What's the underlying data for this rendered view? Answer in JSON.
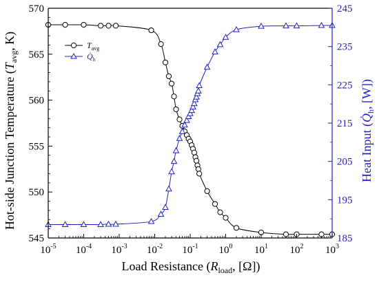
{
  "chart_data": {
    "type": "line",
    "x_scale": "log",
    "xlim_exp": [
      -5,
      3
    ],
    "x_ticks": [
      {
        "base": "10",
        "exp": "-5"
      },
      {
        "base": "10",
        "exp": "-4"
      },
      {
        "base": "10",
        "exp": "-3"
      },
      {
        "base": "10",
        "exp": "-2"
      },
      {
        "base": "10",
        "exp": "-1"
      },
      {
        "base": "10",
        "exp": "0"
      },
      {
        "base": "10",
        "exp": "1"
      },
      {
        "base": "10",
        "exp": "2"
      },
      {
        "base": "10",
        "exp": "3"
      }
    ],
    "xlabel": {
      "pre": "Load Resistance (",
      "var": "R",
      "sub": "load",
      "post": ", [Ω])"
    },
    "ylabel_left": {
      "pre": "Hot-side Junction Temperature (",
      "var": "T",
      "sub": "avg",
      "post": ", K)"
    },
    "ylabel_right": {
      "pre": "Heat Input (",
      "var": "Q̇",
      "sub": "h",
      "post": ", [W])"
    },
    "ylim_left": [
      545,
      570
    ],
    "ylim_right": [
      185,
      245
    ],
    "y_ticks_left": [
      "545",
      "550",
      "555",
      "560",
      "565",
      "570"
    ],
    "y_ticks_right": [
      "185",
      "195",
      "205",
      "215",
      "225",
      "235",
      "245"
    ],
    "grid": false,
    "legend_position": "top-left",
    "colors": {
      "left": "#000000",
      "right": "#1f1fc8"
    },
    "series": [
      {
        "name": {
          "var": "T",
          "sub": "avg"
        },
        "axis": "left",
        "marker": "circle",
        "x": [
          1e-05,
          3e-05,
          0.0001,
          0.0003,
          0.0005,
          0.0008,
          0.008,
          0.015,
          0.02,
          0.025,
          0.03,
          0.035,
          0.04,
          0.05,
          0.06,
          0.07,
          0.08,
          0.09,
          0.1,
          0.11,
          0.12,
          0.13,
          0.14,
          0.15,
          0.16,
          0.17,
          0.18,
          0.3,
          0.5,
          0.7,
          1,
          2,
          10,
          50,
          100,
          500,
          1000
        ],
        "values": [
          568.2,
          568.2,
          568.2,
          568.1,
          568.1,
          568.1,
          567.6,
          566.1,
          564.1,
          562.6,
          561.8,
          560.4,
          559.0,
          557.9,
          557.2,
          556.6,
          556.2,
          555.8,
          555.5,
          555.1,
          554.7,
          554.3,
          553.8,
          553.4,
          552.9,
          552.5,
          552.0,
          550.1,
          548.7,
          547.8,
          547.2,
          546.1,
          545.6,
          545.4,
          545.4,
          545.4,
          545.4
        ]
      },
      {
        "name": {
          "var": "Q̇",
          "sub": "h"
        },
        "axis": "right",
        "marker": "triangle",
        "x": [
          1e-05,
          3e-05,
          0.0001,
          0.0003,
          0.0005,
          0.0008,
          0.008,
          0.015,
          0.02,
          0.025,
          0.03,
          0.035,
          0.04,
          0.05,
          0.06,
          0.07,
          0.08,
          0.09,
          0.1,
          0.11,
          0.12,
          0.13,
          0.14,
          0.15,
          0.16,
          0.17,
          0.18,
          0.3,
          0.5,
          0.7,
          1,
          2,
          10,
          50,
          100,
          500,
          1000
        ],
        "values": [
          188.5,
          188.5,
          188.5,
          188.5,
          188.6,
          188.6,
          189.3,
          191.2,
          193.0,
          197.8,
          202.3,
          205.0,
          207.8,
          211.0,
          212.8,
          214.5,
          215.7,
          216.7,
          217.5,
          218.3,
          219.2,
          220.1,
          221.1,
          221.8,
          222.7,
          223.4,
          224.8,
          229.6,
          233.6,
          235.5,
          237.4,
          239.4,
          240.3,
          240.4,
          240.4,
          240.5,
          240.5
        ]
      }
    ]
  }
}
